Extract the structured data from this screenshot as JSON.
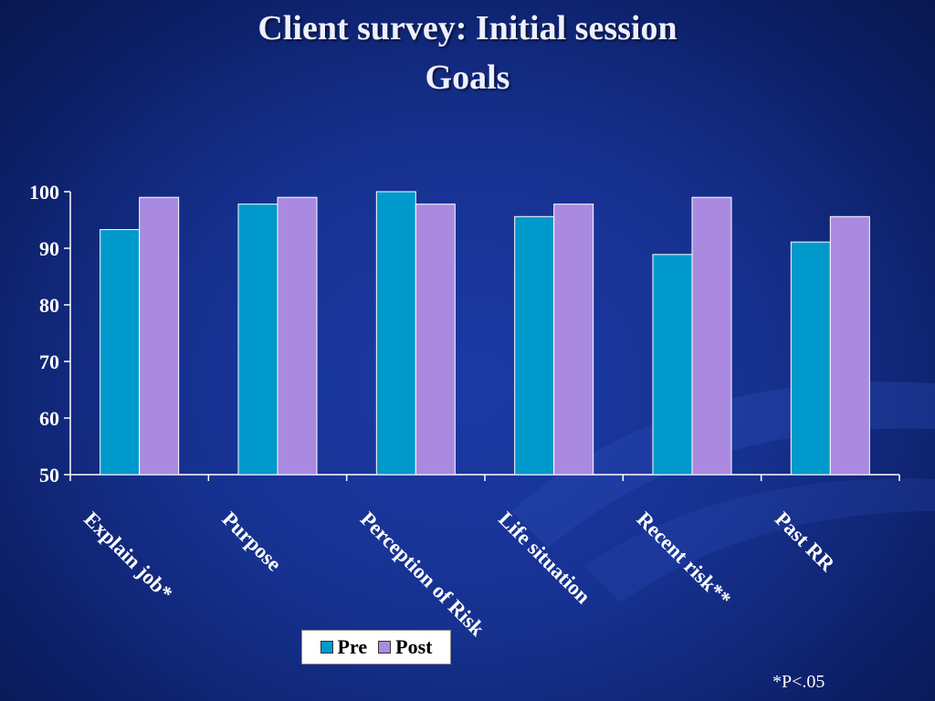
{
  "slide": {
    "title_line1": "Client survey: Initial session",
    "title_line2": "Goals",
    "footnote": "*P<.05"
  },
  "colors": {
    "pre": "#0099cc",
    "post": "#a98ae0",
    "axis": "#ffffff",
    "bar_border": "#ffffff"
  },
  "chart_data": {
    "type": "bar",
    "title": "Client survey: Initial session Goals",
    "categories": [
      "Explain job*",
      "Purpose",
      "Perception of Risk",
      "Life situation",
      "Recent risk**",
      "Past RR"
    ],
    "series": [
      {
        "name": "Pre",
        "values": [
          93.3,
          97.8,
          100,
          95.6,
          88.9,
          91.1
        ]
      },
      {
        "name": "Post",
        "values": [
          99,
          99,
          97.8,
          97.8,
          99,
          95.6
        ]
      }
    ],
    "ylim": [
      50,
      100
    ],
    "yticks": [
      50,
      60,
      70,
      80,
      90,
      100
    ],
    "xlabel": "",
    "ylabel": "",
    "grid": false,
    "legend": "bottom-center"
  }
}
